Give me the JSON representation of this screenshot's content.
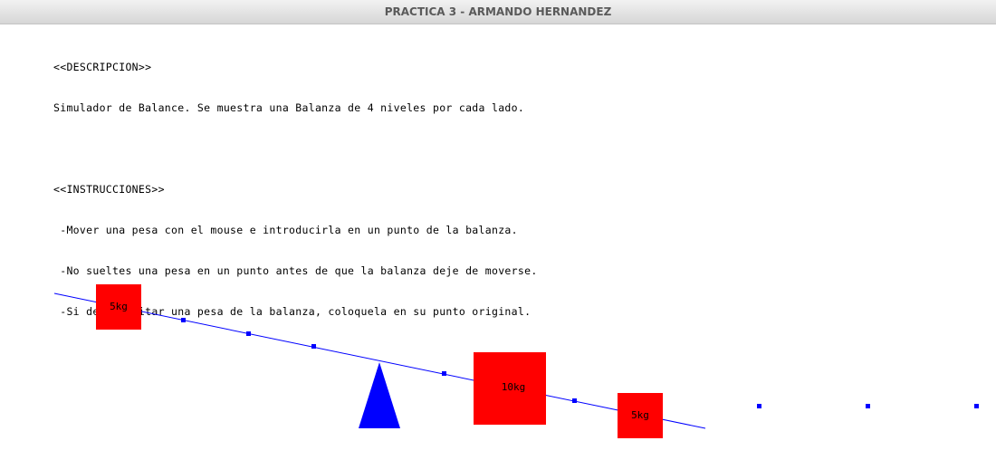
{
  "window": {
    "title": "PRACTICA 3 - ARMANDO HERNANDEZ"
  },
  "description": {
    "header": "<<DESCRIPCION>>",
    "text": "Simulador de Balance. Se muestra una Balanza de 4 niveles por cada lado."
  },
  "instructions": {
    "header": "<<INSTRUCCIONES>>",
    "lines": [
      " -Mover una pesa con el mouse e introducirla en un punto de la balanza.",
      " -No sueltes una pesa en un punto antes de que la balanza deje de moverse.",
      " -Si desea quitar una pesa de la balanza, coloquela en su punto original."
    ]
  },
  "scene": {
    "beam_color": "#0000ff",
    "pivot_color": "#0000ff",
    "weight_color": "#ff0000",
    "weights": [
      {
        "label": "5kg"
      },
      {
        "label": "10kg"
      },
      {
        "label": "5kg"
      }
    ]
  }
}
